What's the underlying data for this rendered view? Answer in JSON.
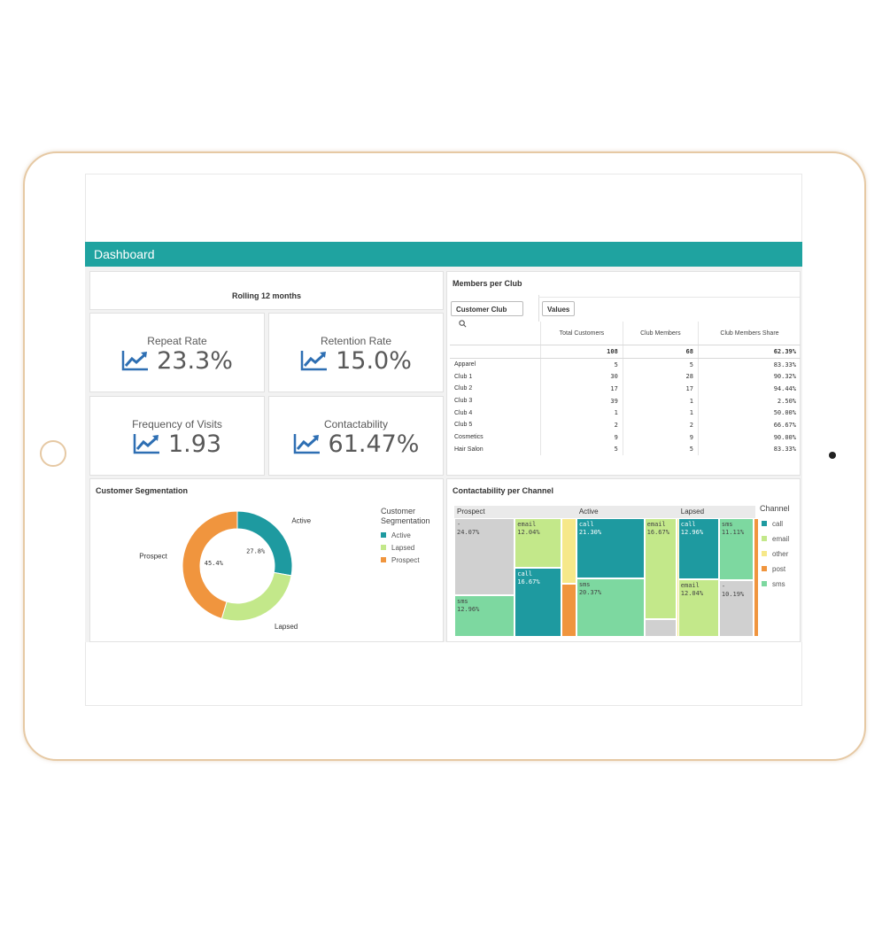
{
  "header": {
    "title": "Dashboard"
  },
  "kpis": {
    "period_label": "Rolling 12 months",
    "repeat_rate": {
      "title": "Repeat Rate",
      "value": "23.3%"
    },
    "retention_rate": {
      "title": "Retention Rate",
      "value": "15.0%"
    },
    "frequency": {
      "title": "Frequency of Visits",
      "value": "1.93"
    },
    "contactability": {
      "title": "Contactability",
      "value": "61.47%"
    },
    "icon": "trend-up-icon"
  },
  "members": {
    "title": "Members per Club",
    "dimension_button": "Customer Club",
    "values_button": "Values",
    "columns": [
      "Total Customers",
      "Club Members",
      "Club Members Share"
    ],
    "totals": [
      "108",
      "68",
      "62.39%"
    ],
    "rows": [
      {
        "name": "Apparel",
        "total": "5",
        "members": "5",
        "share": "83.33%"
      },
      {
        "name": "Club 1",
        "total": "30",
        "members": "28",
        "share": "90.32%"
      },
      {
        "name": "Club 2",
        "total": "17",
        "members": "17",
        "share": "94.44%"
      },
      {
        "name": "Club 3",
        "total": "39",
        "members": "1",
        "share": "2.50%"
      },
      {
        "name": "Club 4",
        "total": "1",
        "members": "1",
        "share": "50.00%"
      },
      {
        "name": "Club 5",
        "total": "2",
        "members": "2",
        "share": "66.67%"
      },
      {
        "name": "Cosmetics",
        "total": "9",
        "members": "9",
        "share": "90.00%"
      },
      {
        "name": "Hair Salon",
        "total": "5",
        "members": "5",
        "share": "83.33%"
      }
    ]
  },
  "segmentation": {
    "title": "Customer Segmentation",
    "legend_title": "Customer Segmentation",
    "legend_title_line1": "Customer",
    "legend_title_line2": "Segmentation",
    "legend": [
      "Active",
      "Lapsed",
      "Prospect"
    ]
  },
  "channel": {
    "title": "Contactability per Channel",
    "legend_title": "Channel",
    "legend": [
      "call",
      "email",
      "other",
      "post",
      "sms"
    ],
    "groups": [
      "Prospect",
      "Active",
      "Lapsed"
    ]
  },
  "colors": {
    "header": "#1fa3a0",
    "active": "#1e9aa0",
    "lapsed": "#c3e88a",
    "prospect": "#f0953e",
    "call": "#1e9aa0",
    "email": "#c3e88a",
    "other": "#f6e88a",
    "post": "#f0953e",
    "sms": "#7dd8a0",
    "unknown": "#d0d0d0",
    "kpi_icon": "#2e6fb3"
  },
  "chart_data": [
    {
      "type": "pie",
      "title": "Customer Segmentation",
      "categories": [
        "Active",
        "Lapsed",
        "Prospect"
      ],
      "values": [
        27.8,
        26.8,
        45.4
      ],
      "labels": [
        "27.8%",
        "",
        "45.4%"
      ]
    },
    {
      "type": "treemap",
      "title": "Contactability per Channel",
      "groups": [
        {
          "name": "Prospect",
          "cells": [
            {
              "name": "-",
              "value": 24.07,
              "label": "24.07%"
            },
            {
              "name": "sms",
              "value": 12.96,
              "label": "12.96%"
            },
            {
              "name": "email",
              "value": 12.04,
              "label": "12.04%"
            },
            {
              "name": "call",
              "value": 16.67,
              "label": "16.67%"
            },
            {
              "name": "other",
              "value": 5.0,
              "label": ""
            },
            {
              "name": "post",
              "value": 4.0,
              "label": ""
            }
          ]
        },
        {
          "name": "Active",
          "cells": [
            {
              "name": "call",
              "value": 21.3,
              "label": "21.30%"
            },
            {
              "name": "sms",
              "value": 20.37,
              "label": "20.37%"
            },
            {
              "name": "email",
              "value": 16.67,
              "label": "16.67%"
            },
            {
              "name": "-",
              "value": 3.0,
              "label": ""
            },
            {
              "name": "other",
              "value": 1.0,
              "label": ""
            }
          ]
        },
        {
          "name": "Lapsed",
          "cells": [
            {
              "name": "call",
              "value": 12.96,
              "label": "12.96%"
            },
            {
              "name": "email",
              "value": 12.04,
              "label": "12.04%"
            },
            {
              "name": "sms",
              "value": 11.11,
              "label": "11.11%"
            },
            {
              "name": "-",
              "value": 10.19,
              "label": "10.19%"
            },
            {
              "name": "post",
              "value": 1.0,
              "label": ""
            }
          ]
        }
      ]
    }
  ]
}
